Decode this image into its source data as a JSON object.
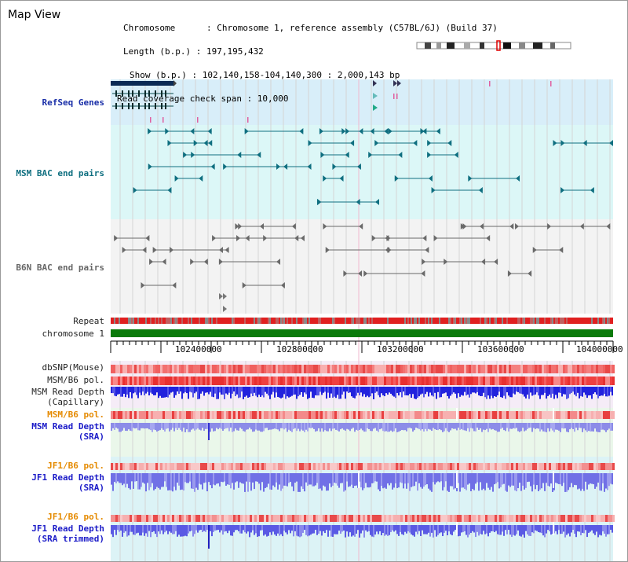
{
  "title": "Map View",
  "info": {
    "chromosome": "Chromosome      : Chromosome 1, reference assembly (C57BL/6J) (Build 37)",
    "length": "Length (b.p.) : 197,195,432",
    "show": "Show (b.p.) : 102,140,158-104,140,300 : 2,000,143 bp",
    "coverage": "Read coverage check span : 10,000"
  },
  "labels": {
    "refseq": "RefSeq Genes",
    "msm_bac": "MSM BAC end pairs",
    "b6n_bac": "B6N BAC end pairs",
    "repeat": "Repeat",
    "chromosome": "chromosome 1",
    "dbsnp": "dbSNP(Mouse)",
    "msm_b6_pol": "MSM/B6 pol.",
    "msm_read_depth_cap_1": "MSM Read Depth",
    "msm_read_depth_cap_2": "(Capillary)",
    "msm_b6_pol_2": "MSM/B6 pol.",
    "msm_read_depth_sra_1": "MSM Read Depth",
    "msm_read_depth_sra_2": "(SRA)",
    "jf1_b6_pol": "JF1/B6 pol.",
    "jf1_read_depth_sra_1": "JF1 Read Depth",
    "jf1_read_depth_sra_2": "(SRA)",
    "jf1_b6_pol_2": "JF1/B6 pol.",
    "jf1_read_depth_trim_1": "JF1 Read Depth",
    "jf1_read_depth_trim_2": "(SRA trimmed)"
  },
  "axis_ticks": [
    "102400000",
    "102800000",
    "103200000",
    "103600000",
    "104000000"
  ],
  "colors": {
    "refseq_bg": "#d8eef9",
    "msm_bg": "#dcf7f7",
    "b6n_bg": "#f3f3f3",
    "msm_depth_bg": "#f5ecf7",
    "sra_bg": "#eaf7ea",
    "jf1_bg": "#dcf3f6",
    "chromosome_bar": "#0a7a0a",
    "depth_blue": "#2b2bd8",
    "depth_light": "#8c8ce8"
  }
}
